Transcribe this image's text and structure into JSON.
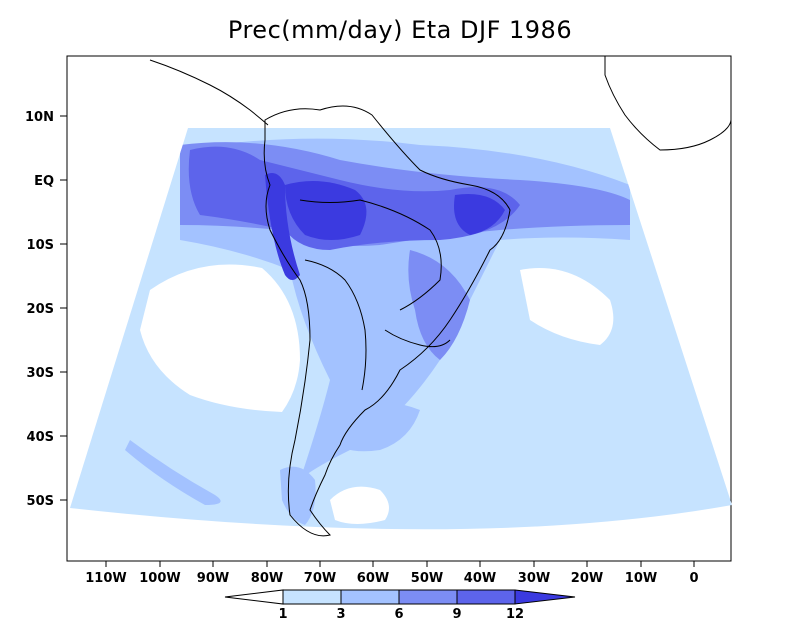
{
  "title": "Prec(mm/day) Eta DJF 1986",
  "colors": {
    "lt1": "#ffffff",
    "b1_3": "#c6e3ff",
    "b3_6": "#a3c2ff",
    "b6_9": "#7c8df4",
    "b9_12": "#5d64eb",
    "gt12": "#3b3ae0",
    "land_outline": "#000000"
  },
  "lat_ticks": [
    "10N",
    "EQ",
    "10S",
    "20S",
    "30S",
    "40S",
    "50S"
  ],
  "lon_ticks": [
    "110W",
    "100W",
    "90W",
    "80W",
    "70W",
    "60W",
    "50W",
    "40W",
    "30W",
    "20W",
    "10W",
    "0"
  ],
  "colorbar": {
    "levels": [
      "1",
      "3",
      "6",
      "9",
      "12"
    ]
  },
  "map_data": {
    "region": "South America",
    "lat_range": [
      -60,
      20
    ],
    "lon_range": [
      -117,
      6
    ],
    "projection": "conic"
  }
}
